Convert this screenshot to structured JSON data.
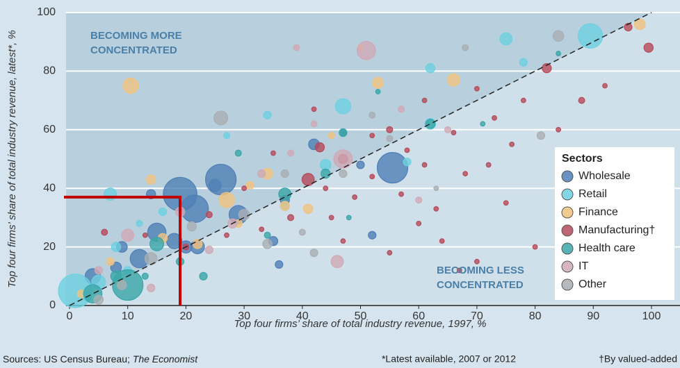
{
  "chart_data": {
    "type": "scatter",
    "xlabel": "Top four firms’ share of total industry revenue, 1997, %",
    "ylabel": "Top four firms’ share of total industry revenue, latest*, %",
    "annotations": [
      "BECOMING MORE",
      "CONCENTRATED",
      "BECOMING LESS",
      "CONCENTRATED"
    ],
    "legend_title": "Sectors",
    "legend": "right",
    "diagonal": true,
    "highlight": {
      "x": 19,
      "y": 37,
      "color": "#c00000"
    },
    "source_prefix": "Sources: US Census Bureau; ",
    "source_italic": "The Economist",
    "notes": [
      "*Latest available, 2007 or 2012",
      "†By valued-added"
    ],
    "xlim": [
      0,
      100
    ],
    "xticks": [
      0,
      10,
      20,
      30,
      40,
      50,
      60,
      70,
      80,
      90,
      100
    ],
    "ylim": [
      0,
      100
    ],
    "yticks": [
      0,
      20,
      40,
      60,
      80,
      100
    ],
    "grid": true,
    "series": [
      {
        "name": "Wholesale",
        "color": "#4f7fb5",
        "x": [
          19,
          26,
          55.5,
          21.5,
          29,
          18,
          12,
          15,
          4,
          9,
          14,
          25,
          42,
          50,
          52,
          36,
          35,
          47,
          37,
          20,
          22,
          8
        ],
        "y": [
          38,
          43,
          47,
          33,
          31,
          22,
          16,
          25,
          10,
          20,
          38,
          41,
          55,
          48,
          24,
          14,
          22,
          59,
          36,
          20,
          20,
          13
        ],
        "sizes": [
          22,
          20,
          20,
          18,
          12,
          10,
          12,
          12,
          10,
          7,
          6,
          8,
          7,
          5,
          5,
          5,
          6,
          5,
          6,
          8,
          9,
          7
        ]
      },
      {
        "name": "Retail",
        "color": "#6dd0e0",
        "x": [
          1,
          89.5,
          75,
          47,
          7,
          62,
          62,
          37,
          34,
          27,
          16,
          8,
          5,
          44,
          10,
          78,
          3,
          12,
          58
        ],
        "y": [
          5,
          92,
          91,
          68,
          38,
          81,
          62,
          34,
          65,
          58,
          32,
          20,
          8,
          48,
          12,
          83,
          3,
          28,
          49
        ],
        "sizes": [
          22,
          16,
          8,
          10,
          8,
          6,
          7,
          6,
          5,
          4,
          5,
          6,
          9,
          7,
          5,
          5,
          6,
          4,
          5
        ]
      },
      {
        "name": "Finance",
        "color": "#f0c27e",
        "x": [
          10.5,
          98,
          53,
          66,
          27,
          34,
          41,
          37,
          14,
          7,
          2,
          22,
          50,
          45,
          29,
          16,
          31
        ],
        "y": [
          75,
          96,
          76,
          77,
          36,
          45,
          33,
          34,
          43,
          15,
          4,
          21,
          88,
          58,
          28,
          23,
          41
        ],
        "sizes": [
          10,
          7,
          7,
          8,
          10,
          7,
          6,
          6,
          6,
          5,
          5,
          6,
          4,
          4,
          5,
          6,
          5
        ]
      },
      {
        "name": "Manufacturing†",
        "color": "#b54a5a",
        "x": [
          99.5,
          96,
          82,
          41,
          43,
          47,
          55,
          61,
          70,
          73,
          66,
          58,
          52,
          49,
          45,
          60,
          64,
          70,
          75,
          80,
          85,
          88,
          76,
          68,
          38,
          33,
          30,
          24,
          20,
          13,
          6,
          42,
          52,
          57,
          63,
          67,
          72,
          78,
          84,
          92,
          35,
          47,
          55,
          44,
          61,
          27
        ],
        "y": [
          88,
          95,
          81,
          43,
          54,
          50,
          60,
          70,
          74,
          64,
          59,
          53,
          44,
          37,
          30,
          28,
          22,
          15,
          35,
          20,
          50,
          70,
          55,
          45,
          30,
          26,
          40,
          31,
          20,
          24,
          25,
          67,
          58,
          38,
          33,
          12,
          48,
          70,
          60,
          75,
          52,
          22,
          18,
          40,
          48,
          24
        ],
        "sizes": [
          6,
          5,
          6,
          8,
          6,
          6,
          4,
          3,
          3,
          3,
          3,
          3,
          3,
          3,
          3,
          3,
          3,
          3,
          3,
          3,
          3,
          4,
          3,
          3,
          4,
          3,
          3,
          4,
          4,
          3,
          4,
          3,
          3,
          3,
          3,
          3,
          3,
          3,
          3,
          3,
          3,
          3,
          3,
          3,
          3,
          3
        ]
      },
      {
        "name": "Health care",
        "color": "#3aa6a8",
        "x": [
          10,
          62,
          37,
          47,
          15,
          4,
          8,
          19,
          23,
          34,
          44,
          53,
          29,
          48,
          13,
          71,
          84
        ],
        "y": [
          7,
          62,
          38,
          59,
          21,
          4,
          10,
          15,
          10,
          24,
          45,
          73,
          52,
          30,
          10,
          62,
          86
        ],
        "sizes": [
          20,
          6,
          8,
          5,
          9,
          12,
          7,
          5,
          5,
          4,
          6,
          3,
          4,
          3,
          4,
          3,
          3
        ]
      },
      {
        "name": "IT",
        "color": "#cfa9b5",
        "x": [
          51,
          47,
          46,
          10,
          39,
          65,
          19,
          33,
          57,
          42,
          5,
          28,
          24,
          38,
          60,
          14
        ],
        "y": [
          87,
          50,
          15,
          24,
          88,
          60,
          32,
          45,
          67,
          62,
          12,
          28,
          19,
          52,
          36,
          6
        ],
        "sizes": [
          12,
          12,
          8,
          8,
          4,
          4,
          6,
          5,
          4,
          4,
          5,
          6,
          5,
          4,
          4,
          5
        ]
      },
      {
        "name": "Other",
        "color": "#a9aeb3",
        "x": [
          26,
          84,
          81,
          34,
          42,
          14,
          5,
          30,
          47,
          52,
          68,
          55,
          21,
          37,
          9,
          63,
          40
        ],
        "y": [
          64,
          92,
          58,
          21,
          18,
          16,
          2,
          31,
          45,
          65,
          88,
          57,
          27,
          45,
          7,
          40,
          25
        ],
        "sizes": [
          9,
          7,
          5,
          6,
          5,
          8,
          6,
          7,
          5,
          4,
          4,
          4,
          6,
          5,
          6,
          3,
          4
        ]
      }
    ]
  }
}
